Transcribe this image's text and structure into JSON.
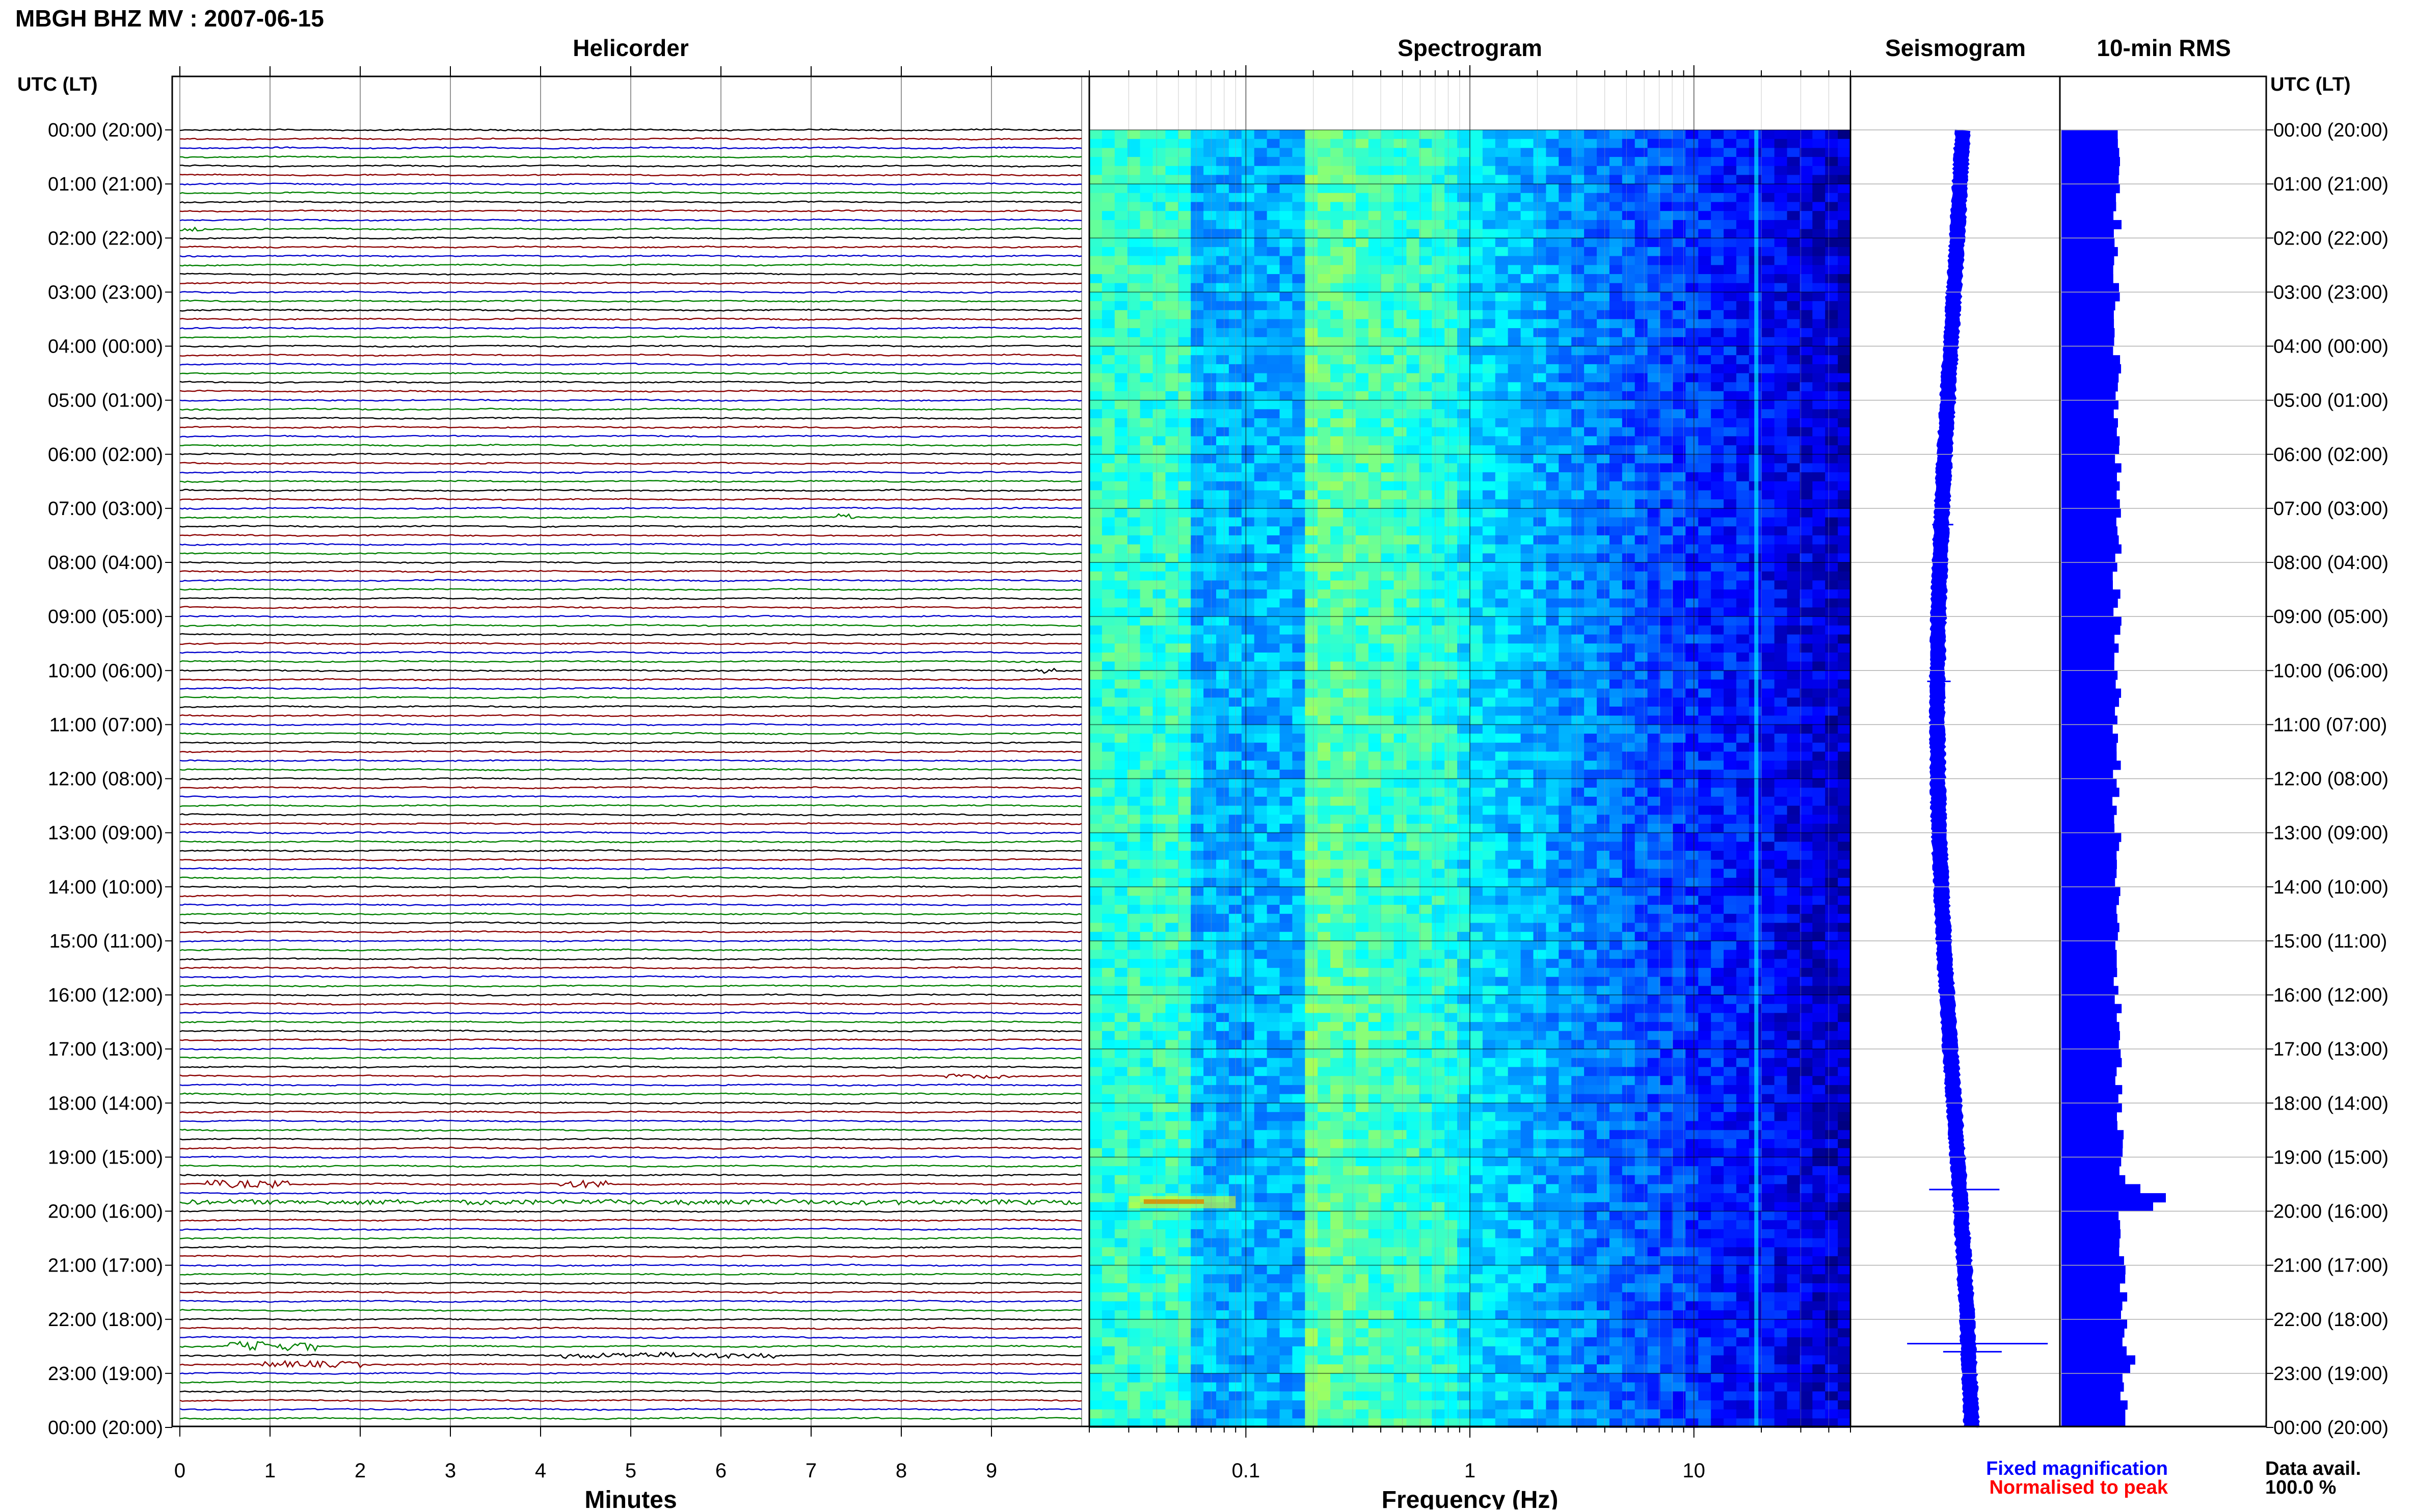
{
  "header": {
    "station_title": "MBGH BHZ MV : 2007-06-15",
    "utc_lt_left": "UTC (LT)",
    "utc_lt_right": "UTC (LT)"
  },
  "panels": {
    "helicorder": "Helicorder",
    "spectrogram": "Spectrogram",
    "seismogram": "Seismogram",
    "rms": "10-min RMS"
  },
  "time_labels": [
    "00:00 (20:00)",
    "01:00 (21:00)",
    "02:00 (22:00)",
    "03:00 (23:00)",
    "04:00 (00:00)",
    "05:00 (01:00)",
    "06:00 (02:00)",
    "07:00 (03:00)",
    "08:00 (04:00)",
    "09:00 (05:00)",
    "10:00 (06:00)",
    "11:00 (07:00)",
    "12:00 (08:00)",
    "13:00 (09:00)",
    "14:00 (10:00)",
    "15:00 (11:00)",
    "16:00 (12:00)",
    "17:00 (13:00)",
    "18:00 (14:00)",
    "19:00 (15:00)",
    "20:00 (16:00)",
    "21:00 (17:00)",
    "22:00 (18:00)",
    "23:00 (19:00)",
    "00:00 (20:00)"
  ],
  "footer": {
    "fixed_magnification": "Fixed magnification",
    "normalised_to_peak": "Normalised to peak",
    "data_avail_label": "Data avail.",
    "data_avail_value": "100.0 %"
  },
  "colors": {
    "blue_text": "#0000ff",
    "red_text": "#ff0000",
    "trace_colors": [
      "#000000",
      "#8b0000",
      "#0000cc",
      "#008000"
    ],
    "rms_fill": "#0000ff",
    "grid": "#b0b0b0"
  },
  "chart_data": [
    {
      "type": "line",
      "panel": "helicorder",
      "title": "Helicorder",
      "xlabel": "Minutes",
      "ylabel": "UTC (LT)",
      "xlim": [
        0,
        10
      ],
      "x_ticks": [
        0,
        1,
        2,
        3,
        4,
        5,
        6,
        7,
        8,
        9
      ],
      "traces_per_hour": 6,
      "trace_minutes": 10,
      "grid": true
    },
    {
      "type": "heatmap",
      "panel": "spectrogram",
      "title": "Spectrogram",
      "xlabel": "Frequency (Hz)",
      "x_scale": "log",
      "xlim": [
        0.02,
        50
      ],
      "x_ticks": [
        0.1,
        1,
        10
      ],
      "x_tick_labels": [
        "0.1",
        "1",
        "10"
      ],
      "colormap": "jet",
      "grid": true
    },
    {
      "type": "line",
      "panel": "seismogram",
      "title": "Seismogram",
      "grid": true
    },
    {
      "type": "bar",
      "panel": "rms",
      "title": "10-min RMS",
      "orientation": "horizontal",
      "bins_per_hour": 6,
      "grid": true
    }
  ]
}
